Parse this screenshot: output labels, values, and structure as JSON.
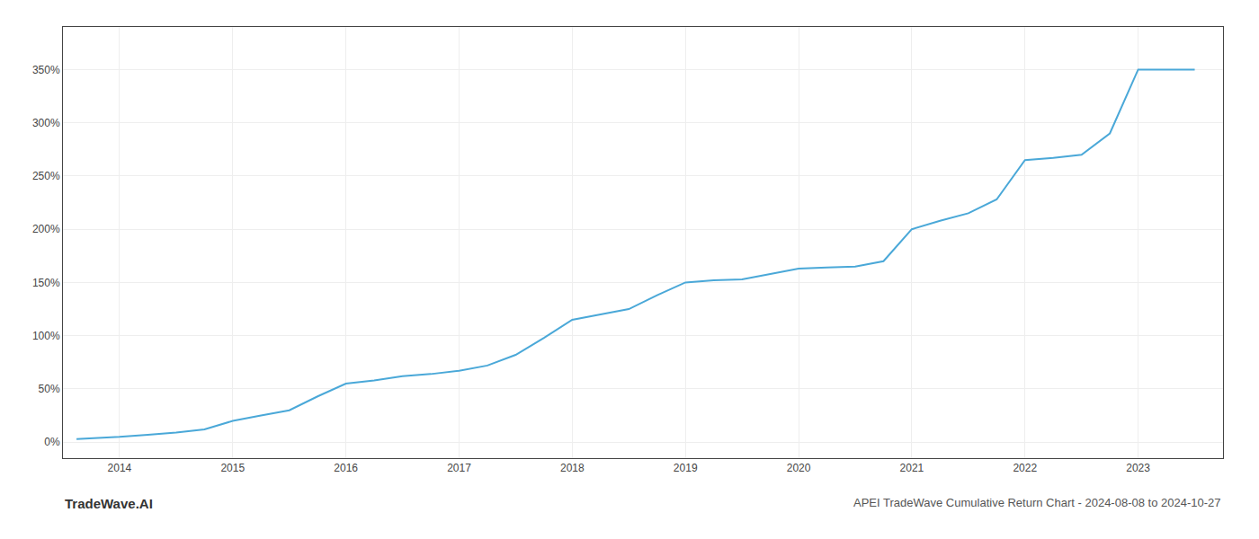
{
  "chart_data": {
    "type": "line",
    "title": "APEI TradeWave Cumulative Return Chart - 2024-08-08 to 2024-10-27",
    "annotations": [
      "TradeWave.AI"
    ],
    "x": [
      2013.62,
      2014.0,
      2014.25,
      2014.5,
      2014.75,
      2015.0,
      2015.25,
      2015.5,
      2015.75,
      2016.0,
      2016.25,
      2016.5,
      2016.75,
      2017.0,
      2017.25,
      2017.5,
      2017.75,
      2018.0,
      2018.25,
      2018.5,
      2018.75,
      2019.0,
      2019.25,
      2019.5,
      2019.75,
      2020.0,
      2020.25,
      2020.5,
      2020.75,
      2021.0,
      2021.25,
      2021.5,
      2021.75,
      2022.0,
      2022.25,
      2022.5,
      2022.75,
      2023.0,
      2023.25,
      2023.5
    ],
    "values": [
      3,
      5,
      7,
      9,
      12,
      20,
      25,
      30,
      43,
      55,
      58,
      62,
      64,
      67,
      72,
      82,
      98,
      115,
      120,
      125,
      138,
      150,
      152,
      153,
      158,
      163,
      164,
      165,
      170,
      200,
      208,
      215,
      228,
      265,
      267,
      270,
      290,
      350,
      350,
      350
    ],
    "color": "#4aa8d8",
    "xlim": [
      2013.5,
      2023.75
    ],
    "ylim": [
      -15,
      390
    ],
    "xticks": [
      2014,
      2015,
      2016,
      2017,
      2018,
      2019,
      2020,
      2021,
      2022,
      2023
    ],
    "yticks": [
      {
        "value": 0,
        "label": "0%"
      },
      {
        "value": 50,
        "label": "50%"
      },
      {
        "value": 100,
        "label": "100%"
      },
      {
        "value": 150,
        "label": "150%"
      },
      {
        "value": 200,
        "label": "200%"
      },
      {
        "value": 250,
        "label": "250%"
      },
      {
        "value": 300,
        "label": "300%"
      },
      {
        "value": 350,
        "label": "350%"
      }
    ],
    "grid": true
  }
}
